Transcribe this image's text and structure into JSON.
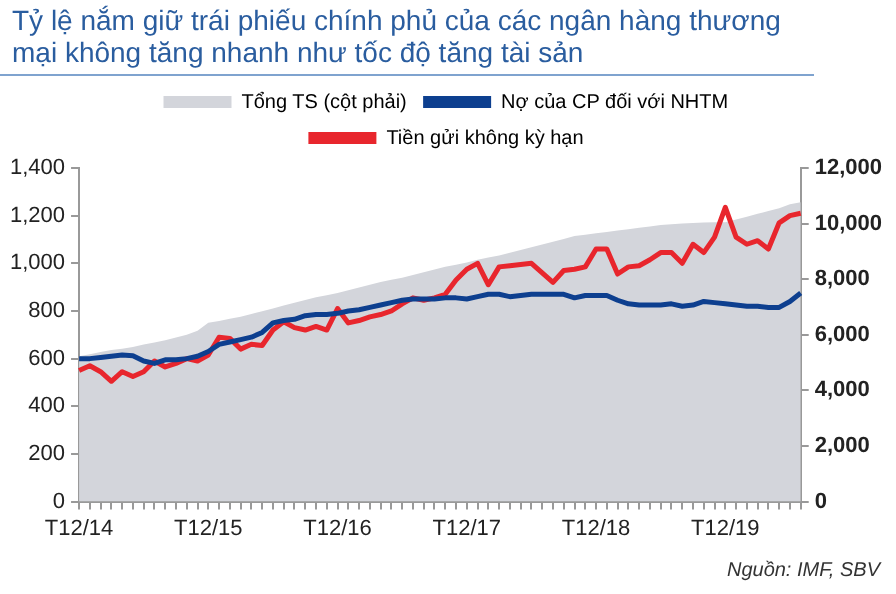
{
  "chart_data": {
    "type": "line",
    "title": "Tỷ lệ nắm giữ trái phiếu chính phủ của các ngân hàng thương mại không tăng nhanh như tốc độ tăng tài sản",
    "categories": [
      "T12/14",
      null,
      null,
      null,
      null,
      null,
      null,
      null,
      null,
      null,
      null,
      null,
      "T12/15",
      null,
      null,
      null,
      null,
      null,
      null,
      null,
      null,
      null,
      null,
      null,
      "T12/16",
      null,
      null,
      null,
      null,
      null,
      null,
      null,
      null,
      null,
      null,
      null,
      "T12/17",
      null,
      null,
      null,
      null,
      null,
      null,
      null,
      null,
      null,
      null,
      null,
      "T12/18",
      null,
      null,
      null,
      null,
      null,
      null,
      null,
      null,
      null,
      null,
      null,
      "T12/19",
      null,
      null,
      null,
      null,
      null,
      null,
      null
    ],
    "series": [
      {
        "name": "Tổng TS (cột phải)",
        "type": "area",
        "axis": "y2",
        "color": "#d3d5db",
        "values": [
          5230,
          5300,
          5380,
          5450,
          5500,
          5560,
          5650,
          5720,
          5800,
          5900,
          6000,
          6150,
          6430,
          6500,
          6580,
          6650,
          6750,
          6850,
          6950,
          7050,
          7150,
          7250,
          7350,
          7420,
          7500,
          7600,
          7700,
          7800,
          7900,
          7980,
          8050,
          8150,
          8250,
          8350,
          8450,
          8520,
          8600,
          8700,
          8780,
          8850,
          8950,
          9050,
          9150,
          9250,
          9350,
          9450,
          9550,
          9600,
          9650,
          9700,
          9750,
          9800,
          9850,
          9900,
          9950,
          9980,
          10000,
          10020,
          10040,
          10050,
          10050,
          10150,
          10250,
          10350,
          10450,
          10550,
          10700,
          10770
        ]
      },
      {
        "name": "Nợ của CP đối với NHTM",
        "type": "line",
        "color": "#0d3f8f",
        "values": [
          600,
          600,
          605,
          610,
          615,
          612,
          590,
          580,
          595,
          595,
          600,
          610,
          630,
          660,
          670,
          680,
          690,
          710,
          750,
          760,
          765,
          780,
          785,
          785,
          790,
          800,
          805,
          815,
          825,
          835,
          845,
          850,
          850,
          850,
          855,
          855,
          850,
          860,
          870,
          870,
          860,
          865,
          870,
          870,
          870,
          870,
          855,
          865,
          865,
          865,
          845,
          830,
          825,
          825,
          825,
          830,
          820,
          825,
          840,
          835,
          830,
          825,
          820,
          820,
          815,
          815,
          840,
          875
        ]
      },
      {
        "name": "Tiền gửi không kỳ hạn",
        "type": "line",
        "color": "#e8262d",
        "values": [
          550,
          570,
          545,
          505,
          545,
          525,
          545,
          590,
          565,
          580,
          600,
          590,
          615,
          690,
          685,
          640,
          660,
          655,
          720,
          755,
          730,
          720,
          735,
          720,
          810,
          750,
          760,
          775,
          785,
          800,
          830,
          855,
          845,
          855,
          870,
          930,
          975,
          1000,
          910,
          985,
          990,
          995,
          1000,
          960,
          920,
          970,
          975,
          985,
          1060,
          1060,
          955,
          985,
          990,
          1015,
          1045,
          1045,
          1000,
          1080,
          1045,
          1110,
          1235,
          1110,
          1080,
          1095,
          1060,
          1170,
          1200,
          1210
        ]
      }
    ],
    "ylim": [
      0,
      1400
    ],
    "yticks": [
      0,
      200,
      400,
      600,
      800,
      {
        "value": 1000,
        "label": "1,000"
      },
      {
        "value": 1200,
        "label": "1,200"
      },
      {
        "value": 1400,
        "label": "1,400"
      }
    ],
    "y2lim": [
      0,
      12000
    ],
    "y2ticks": [
      0,
      {
        "value": 2000,
        "label": "2,000"
      },
      {
        "value": 4000,
        "label": "4,000"
      },
      {
        "value": 6000,
        "label": "6,000"
      },
      {
        "value": 8000,
        "label": "8,000"
      },
      {
        "value": 10000,
        "label": "10,000"
      },
      {
        "value": 12000,
        "label": "12,000"
      }
    ],
    "grid": false,
    "legend": "top",
    "marker": "none",
    "line_style": "solid",
    "annotations": [
      "Nguồn: IMF, SBV"
    ]
  }
}
